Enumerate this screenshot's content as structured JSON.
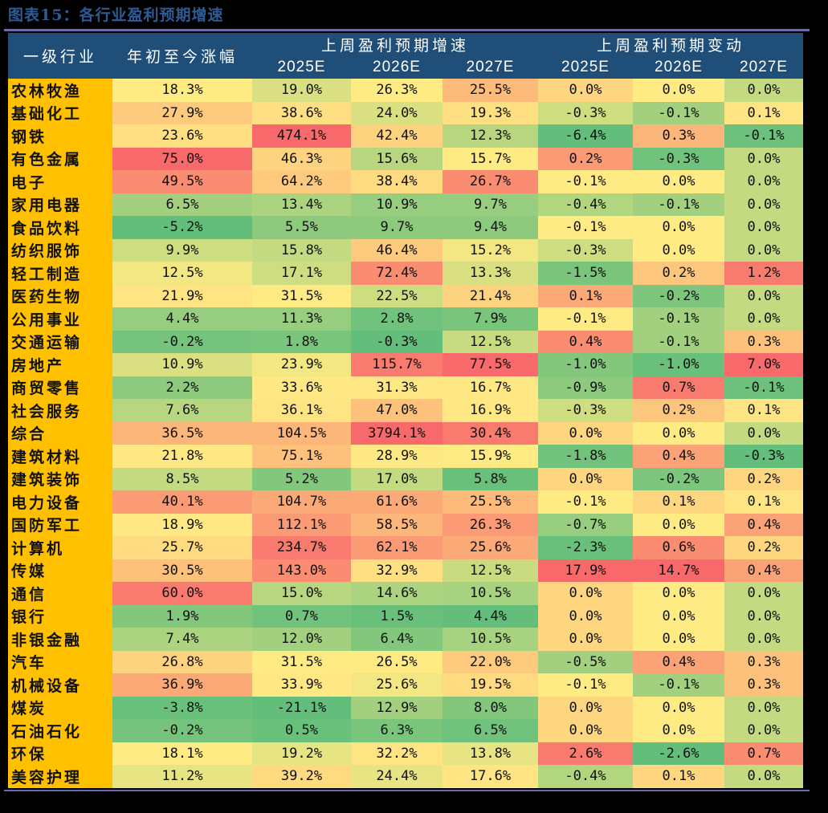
{
  "title": "图表15：各行业盈利预期增速",
  "header": {
    "industry": "一级行业",
    "ytd": "年初至今涨幅",
    "group_growth": "上周盈利预期增速",
    "group_change": "上周盈利预期变动",
    "years": [
      "2025E",
      "2026E",
      "2027E"
    ]
  },
  "rows": [
    {
      "name": "农林牧渔",
      "ytd": "18.3%",
      "g25": "19.0%",
      "g26": "26.3%",
      "g27": "25.5%",
      "c25": "0.0%",
      "c26": "0.0%",
      "c27": "0.0%"
    },
    {
      "name": "基础化工",
      "ytd": "27.9%",
      "g25": "38.6%",
      "g26": "24.0%",
      "g27": "19.3%",
      "c25": "-0.3%",
      "c26": "-0.1%",
      "c27": "0.1%"
    },
    {
      "name": "钢铁",
      "ytd": "23.6%",
      "g25": "474.1%",
      "g26": "42.4%",
      "g27": "12.3%",
      "c25": "-6.4%",
      "c26": "0.3%",
      "c27": "-0.1%"
    },
    {
      "name": "有色金属",
      "ytd": "75.0%",
      "g25": "46.3%",
      "g26": "15.6%",
      "g27": "15.7%",
      "c25": "0.2%",
      "c26": "-0.3%",
      "c27": "0.0%"
    },
    {
      "name": "电子",
      "ytd": "49.5%",
      "g25": "64.2%",
      "g26": "38.4%",
      "g27": "26.7%",
      "c25": "-0.1%",
      "c26": "0.0%",
      "c27": "0.0%"
    },
    {
      "name": "家用电器",
      "ytd": "6.5%",
      "g25": "13.4%",
      "g26": "10.9%",
      "g27": "9.7%",
      "c25": "-0.4%",
      "c26": "-0.1%",
      "c27": "0.0%"
    },
    {
      "name": "食品饮料",
      "ytd": "-5.2%",
      "g25": "5.5%",
      "g26": "9.7%",
      "g27": "9.4%",
      "c25": "-0.1%",
      "c26": "0.0%",
      "c27": "0.0%"
    },
    {
      "name": "纺织服饰",
      "ytd": "9.9%",
      "g25": "15.8%",
      "g26": "46.4%",
      "g27": "15.2%",
      "c25": "-0.3%",
      "c26": "0.0%",
      "c27": "0.0%"
    },
    {
      "name": "轻工制造",
      "ytd": "12.5%",
      "g25": "17.1%",
      "g26": "72.4%",
      "g27": "13.3%",
      "c25": "-1.5%",
      "c26": "0.2%",
      "c27": "1.2%"
    },
    {
      "name": "医药生物",
      "ytd": "21.9%",
      "g25": "31.5%",
      "g26": "22.5%",
      "g27": "21.4%",
      "c25": "0.1%",
      "c26": "-0.2%",
      "c27": "0.0%"
    },
    {
      "name": "公用事业",
      "ytd": "4.4%",
      "g25": "11.3%",
      "g26": "2.8%",
      "g27": "7.9%",
      "c25": "-0.1%",
      "c26": "-0.1%",
      "c27": "0.0%"
    },
    {
      "name": "交通运输",
      "ytd": "-0.2%",
      "g25": "1.8%",
      "g26": "-0.3%",
      "g27": "12.5%",
      "c25": "0.4%",
      "c26": "-0.1%",
      "c27": "0.3%"
    },
    {
      "name": "房地产",
      "ytd": "10.9%",
      "g25": "23.9%",
      "g26": "115.7%",
      "g27": "77.5%",
      "c25": "-1.0%",
      "c26": "-1.0%",
      "c27": "7.0%"
    },
    {
      "name": "商贸零售",
      "ytd": "2.2%",
      "g25": "33.6%",
      "g26": "31.3%",
      "g27": "16.7%",
      "c25": "-0.9%",
      "c26": "0.7%",
      "c27": "-0.1%"
    },
    {
      "name": "社会服务",
      "ytd": "7.6%",
      "g25": "36.1%",
      "g26": "47.0%",
      "g27": "16.9%",
      "c25": "-0.3%",
      "c26": "0.2%",
      "c27": "0.1%"
    },
    {
      "name": "综合",
      "ytd": "36.5%",
      "g25": "104.5%",
      "g26": "3794.1%",
      "g27": "30.4%",
      "c25": "0.0%",
      "c26": "0.0%",
      "c27": "0.0%"
    },
    {
      "name": "建筑材料",
      "ytd": "21.8%",
      "g25": "75.1%",
      "g26": "28.9%",
      "g27": "15.9%",
      "c25": "-1.8%",
      "c26": "0.4%",
      "c27": "-0.3%"
    },
    {
      "name": "建筑装饰",
      "ytd": "8.5%",
      "g25": "5.2%",
      "g26": "17.0%",
      "g27": "5.8%",
      "c25": "0.0%",
      "c26": "-0.2%",
      "c27": "0.2%"
    },
    {
      "name": "电力设备",
      "ytd": "40.1%",
      "g25": "104.7%",
      "g26": "61.6%",
      "g27": "25.5%",
      "c25": "-0.1%",
      "c26": "0.1%",
      "c27": "0.1%"
    },
    {
      "name": "国防军工",
      "ytd": "18.9%",
      "g25": "112.1%",
      "g26": "58.5%",
      "g27": "26.3%",
      "c25": "-0.7%",
      "c26": "0.0%",
      "c27": "0.4%"
    },
    {
      "name": "计算机",
      "ytd": "25.7%",
      "g25": "234.7%",
      "g26": "62.1%",
      "g27": "25.6%",
      "c25": "-2.3%",
      "c26": "0.6%",
      "c27": "0.2%"
    },
    {
      "name": "传媒",
      "ytd": "30.5%",
      "g25": "143.0%",
      "g26": "32.9%",
      "g27": "12.5%",
      "c25": "17.9%",
      "c26": "14.7%",
      "c27": "0.4%"
    },
    {
      "name": "通信",
      "ytd": "60.0%",
      "g25": "15.0%",
      "g26": "14.6%",
      "g27": "10.5%",
      "c25": "0.0%",
      "c26": "0.0%",
      "c27": "0.0%"
    },
    {
      "name": "银行",
      "ytd": "1.9%",
      "g25": "0.7%",
      "g26": "1.5%",
      "g27": "4.4%",
      "c25": "0.0%",
      "c26": "0.0%",
      "c27": "0.0%"
    },
    {
      "name": "非银金融",
      "ytd": "7.4%",
      "g25": "12.0%",
      "g26": "6.4%",
      "g27": "10.5%",
      "c25": "0.0%",
      "c26": "0.0%",
      "c27": "0.0%"
    },
    {
      "name": "汽车",
      "ytd": "26.8%",
      "g25": "31.5%",
      "g26": "26.5%",
      "g27": "22.0%",
      "c25": "-0.5%",
      "c26": "0.4%",
      "c27": "0.3%"
    },
    {
      "name": "机械设备",
      "ytd": "36.9%",
      "g25": "33.9%",
      "g26": "25.6%",
      "g27": "19.5%",
      "c25": "-0.1%",
      "c26": "-0.1%",
      "c27": "0.3%"
    },
    {
      "name": "煤炭",
      "ytd": "-3.8%",
      "g25": "-21.1%",
      "g26": "12.9%",
      "g27": "8.0%",
      "c25": "0.0%",
      "c26": "0.0%",
      "c27": "0.0%"
    },
    {
      "name": "石油石化",
      "ytd": "-0.2%",
      "g25": "0.5%",
      "g26": "6.3%",
      "g27": "6.5%",
      "c25": "0.0%",
      "c26": "0.0%",
      "c27": "0.0%"
    },
    {
      "name": "环保",
      "ytd": "18.1%",
      "g25": "19.2%",
      "g26": "32.2%",
      "g27": "13.8%",
      "c25": "2.6%",
      "c26": "-2.6%",
      "c27": "0.7%"
    },
    {
      "name": "美容护理",
      "ytd": "11.2%",
      "g25": "39.2%",
      "g26": "24.4%",
      "g27": "17.6%",
      "c25": "-0.4%",
      "c26": "0.1%",
      "c27": "0.0%"
    }
  ],
  "colors": {
    "header_bg": "#1f4e79",
    "name_bg": "#ffc000",
    "heat_low": "#63be7b",
    "heat_mid": "#ffeb84",
    "heat_high": "#f8696b"
  },
  "chart_data": {
    "type": "heatmap",
    "title": "图表15：各行业盈利预期增速",
    "columns": [
      "一级行业",
      "年初至今涨幅",
      "上周盈利预期增速 2025E",
      "上周盈利预期增速 2026E",
      "上周盈利预期增速 2027E",
      "上周盈利预期变动 2025E",
      "上周盈利预期变动 2026E",
      "上周盈利预期变动 2027E"
    ],
    "categories": [
      "农林牧渔",
      "基础化工",
      "钢铁",
      "有色金属",
      "电子",
      "家用电器",
      "食品饮料",
      "纺织服饰",
      "轻工制造",
      "医药生物",
      "公用事业",
      "交通运输",
      "房地产",
      "商贸零售",
      "社会服务",
      "综合",
      "建筑材料",
      "建筑装饰",
      "电力设备",
      "国防军工",
      "计算机",
      "传媒",
      "通信",
      "银行",
      "非银金融",
      "汽车",
      "机械设备",
      "煤炭",
      "石油石化",
      "环保",
      "美容护理"
    ],
    "series": [
      {
        "name": "年初至今涨幅",
        "values": [
          18.3,
          27.9,
          23.6,
          75.0,
          49.5,
          6.5,
          -5.2,
          9.9,
          12.5,
          21.9,
          4.4,
          -0.2,
          10.9,
          2.2,
          7.6,
          36.5,
          21.8,
          8.5,
          40.1,
          18.9,
          25.7,
          30.5,
          60.0,
          1.9,
          7.4,
          26.8,
          36.9,
          -3.8,
          -0.2,
          18.1,
          11.2
        ]
      },
      {
        "name": "上周盈利预期增速 2025E",
        "values": [
          19.0,
          38.6,
          474.1,
          46.3,
          64.2,
          13.4,
          5.5,
          15.8,
          17.1,
          31.5,
          11.3,
          1.8,
          23.9,
          33.6,
          36.1,
          104.5,
          75.1,
          5.2,
          104.7,
          112.1,
          234.7,
          143.0,
          15.0,
          0.7,
          12.0,
          31.5,
          33.9,
          -21.1,
          0.5,
          19.2,
          39.2
        ]
      },
      {
        "name": "上周盈利预期增速 2026E",
        "values": [
          26.3,
          24.0,
          42.4,
          15.6,
          38.4,
          10.9,
          9.7,
          46.4,
          72.4,
          22.5,
          2.8,
          -0.3,
          115.7,
          31.3,
          47.0,
          3794.1,
          28.9,
          17.0,
          61.6,
          58.5,
          62.1,
          32.9,
          14.6,
          1.5,
          6.4,
          26.5,
          25.6,
          12.9,
          6.3,
          32.2,
          24.4
        ]
      },
      {
        "name": "上周盈利预期增速 2027E",
        "values": [
          25.5,
          19.3,
          12.3,
          15.7,
          26.7,
          9.7,
          9.4,
          15.2,
          13.3,
          21.4,
          7.9,
          12.5,
          77.5,
          16.7,
          16.9,
          30.4,
          15.9,
          5.8,
          25.5,
          26.3,
          25.6,
          12.5,
          10.5,
          4.4,
          10.5,
          22.0,
          19.5,
          8.0,
          6.5,
          13.8,
          17.6
        ]
      },
      {
        "name": "上周盈利预期变动 2025E",
        "values": [
          0.0,
          -0.3,
          -6.4,
          0.2,
          -0.1,
          -0.4,
          -0.1,
          -0.3,
          -1.5,
          0.1,
          -0.1,
          0.4,
          -1.0,
          -0.9,
          -0.3,
          0.0,
          -1.8,
          0.0,
          -0.1,
          -0.7,
          -2.3,
          17.9,
          0.0,
          0.0,
          0.0,
          -0.5,
          -0.1,
          0.0,
          0.0,
          2.6,
          -0.4
        ]
      },
      {
        "name": "上周盈利预期变动 2026E",
        "values": [
          0.0,
          -0.1,
          0.3,
          -0.3,
          0.0,
          -0.1,
          0.0,
          0.0,
          0.2,
          -0.2,
          -0.1,
          -0.1,
          -1.0,
          0.7,
          0.2,
          0.0,
          0.4,
          -0.2,
          0.1,
          0.0,
          0.6,
          14.7,
          0.0,
          0.0,
          0.0,
          0.4,
          -0.1,
          0.0,
          0.0,
          -2.6,
          0.1
        ]
      },
      {
        "name": "上周盈利预期变动 2027E",
        "values": [
          0.0,
          0.1,
          -0.1,
          0.0,
          0.0,
          0.0,
          0.0,
          0.0,
          1.2,
          0.0,
          0.0,
          0.3,
          7.0,
          -0.1,
          0.1,
          0.0,
          -0.3,
          0.2,
          0.1,
          0.4,
          0.2,
          0.4,
          0.0,
          0.0,
          0.0,
          0.3,
          0.3,
          0.0,
          0.0,
          0.7,
          0.0
        ]
      }
    ],
    "unit": "%"
  }
}
